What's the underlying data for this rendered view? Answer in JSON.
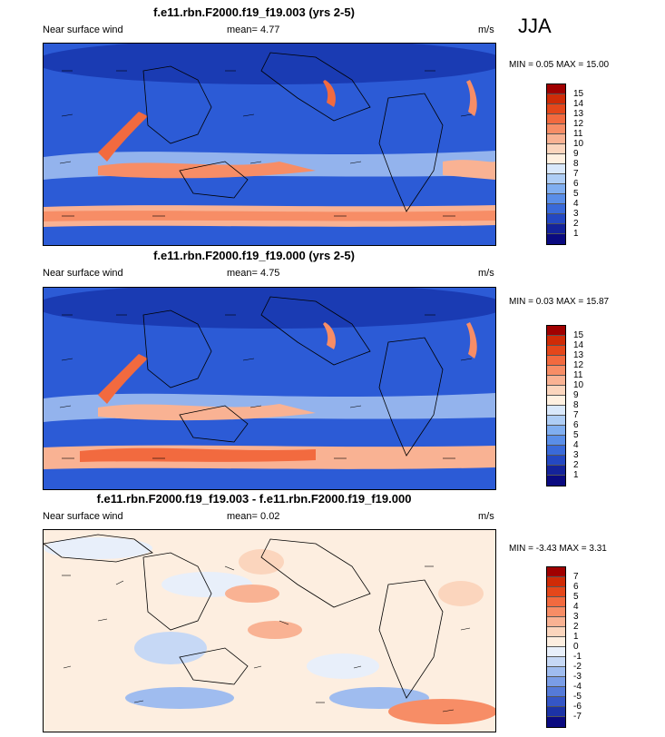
{
  "season": "JJA",
  "panels": [
    {
      "title": "f.e11.rbn.F2000.f19_f19.003 (yrs 2-5)",
      "variable": "Near surface wind",
      "mean_label": "mean=",
      "mean_value": "4.77",
      "units": "m/s",
      "min_label": "MIN =",
      "min_value": "0.05",
      "max_label": "MAX =",
      "max_value": "15.00",
      "colorbar_labels": [
        "15",
        "14",
        "13",
        "12",
        "11",
        "10",
        "9",
        "8",
        "7",
        "6",
        "5",
        "4",
        "3",
        "2",
        "1"
      ],
      "colorbar_colors": [
        "#a00000",
        "#cf2b07",
        "#e4471b",
        "#f26a3f",
        "#f78d66",
        "#f9b293",
        "#fbd5bd",
        "#fff0e0",
        "#d9e8fb",
        "#aecdf5",
        "#80aef0",
        "#5a8ee8",
        "#3a6ad9",
        "#2448c2",
        "#14239a",
        "#0a0a80"
      ]
    },
    {
      "title": "f.e11.rbn.F2000.f19_f19.000 (yrs 2-5)",
      "variable": "Near surface wind",
      "mean_label": "mean=",
      "mean_value": "4.75",
      "units": "m/s",
      "min_label": "MIN =",
      "min_value": "0.03",
      "max_label": "MAX =",
      "max_value": "15.87",
      "colorbar_labels": [
        "15",
        "14",
        "13",
        "12",
        "11",
        "10",
        "9",
        "8",
        "7",
        "6",
        "5",
        "4",
        "3",
        "2",
        "1"
      ],
      "colorbar_colors": [
        "#a00000",
        "#cf2b07",
        "#e4471b",
        "#f26a3f",
        "#f78d66",
        "#f9b293",
        "#fbd5bd",
        "#fff0e0",
        "#d9e8fb",
        "#aecdf5",
        "#80aef0",
        "#5a8ee8",
        "#3a6ad9",
        "#2448c2",
        "#14239a",
        "#0a0a80"
      ]
    },
    {
      "title": "f.e11.rbn.F2000.f19_f19.003 - f.e11.rbn.F2000.f19_f19.000",
      "variable": "Near surface wind",
      "mean_label": "mean=",
      "mean_value": "0.02",
      "units": "m/s",
      "min_label": "MIN =",
      "min_value": "-3.43",
      "max_label": "MAX =",
      "max_value": "3.31",
      "colorbar_labels": [
        "7",
        "6",
        "5",
        "4",
        "3",
        "2",
        "1",
        "0",
        "-1",
        "-2",
        "-3",
        "-4",
        "-5",
        "-6",
        "-7"
      ],
      "colorbar_colors": [
        "#a00000",
        "#cf2b07",
        "#e4471b",
        "#f26a3f",
        "#f78d66",
        "#f9b293",
        "#fbd5bd",
        "#fdeee0",
        "#e8effa",
        "#c6d8f5",
        "#9fbcef",
        "#7a9de6",
        "#557ad8",
        "#3556c6",
        "#1c33a6",
        "#0a0a80"
      ]
    }
  ]
}
